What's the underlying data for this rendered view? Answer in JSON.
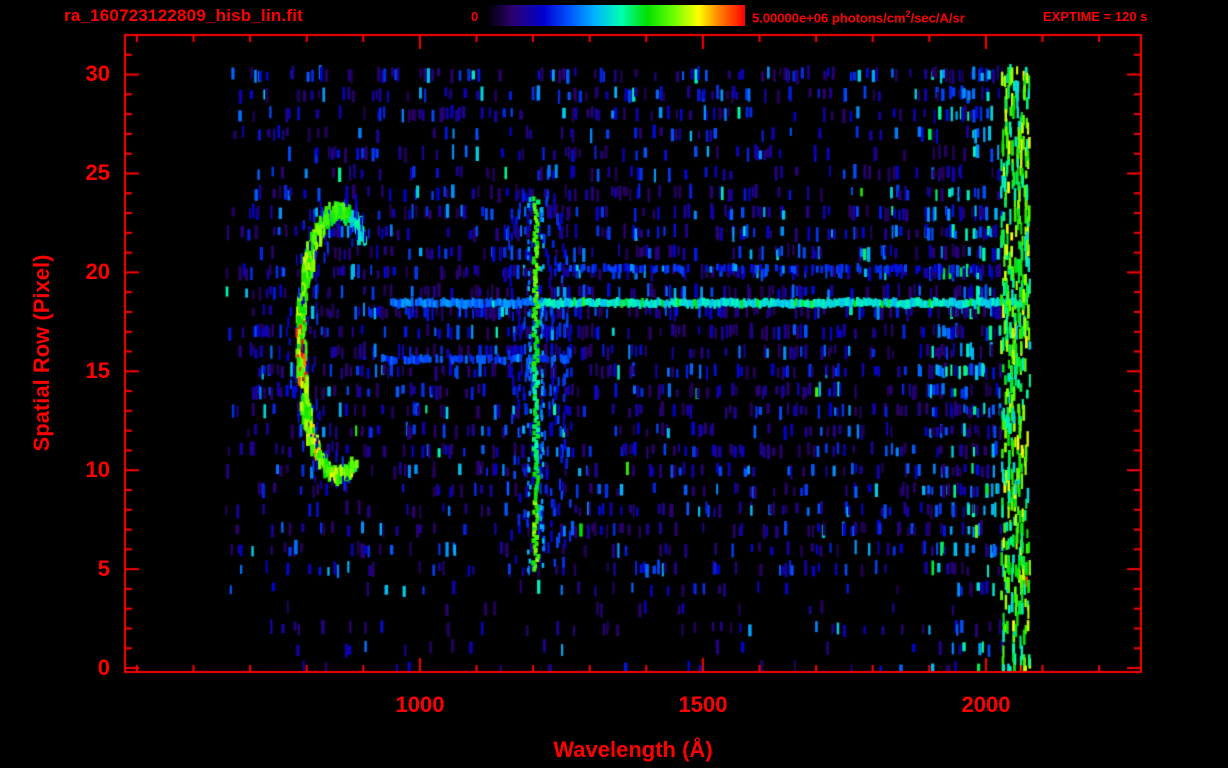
{
  "header": {
    "filename": "ra_160723122809_hisb_lin.fit",
    "exptime": "EXPTIME = 120 s",
    "colorbar": {
      "min_label": "0",
      "max_label_prefix": "5.00000e+06 photons/cm",
      "max_label_sup": "2",
      "max_label_suffix": "/sec/A/sr"
    }
  },
  "axes": {
    "x": {
      "label": "Wavelength (Å)",
      "tick_labels": [
        "1000",
        "1500",
        "2000"
      ]
    },
    "y": {
      "label": "Spatial Row (Pixel)",
      "tick_labels": [
        "0",
        "5",
        "10",
        "15",
        "20",
        "25",
        "30"
      ]
    }
  },
  "chart_data": {
    "type": "heatmap",
    "title": "ra_160723122809_hisb_lin.fit",
    "xlabel": "Wavelength (Å)",
    "ylabel": "Spatial Row (Pixel)",
    "xlim": [
      479,
      2274
    ],
    "ylim": [
      -0.2,
      32
    ],
    "x_major_ticks": [
      1000,
      1500,
      2000
    ],
    "x_minor_step": 100,
    "y_major_ticks": [
      0,
      5,
      10,
      15,
      20,
      25,
      30
    ],
    "y_minor_step": 1,
    "colorbar": {
      "min": 0,
      "max": 5000000,
      "units": "photons/cm2/sec/A/sr"
    },
    "exptime_s": 120,
    "data_extent": {
      "wavelength_A": [
        660,
        2075
      ],
      "spatial_rows": [
        0,
        30.4
      ]
    },
    "axis_color": "#ff0000",
    "background": "#000000",
    "seed": 1337,
    "colormap_stops": [
      [
        0.0,
        "#000000"
      ],
      [
        0.1,
        "#2c0070"
      ],
      [
        0.22,
        "#0000d0"
      ],
      [
        0.32,
        "#0055ff"
      ],
      [
        0.42,
        "#00b4ff"
      ],
      [
        0.52,
        "#00ffb0"
      ],
      [
        0.62,
        "#00e000"
      ],
      [
        0.72,
        "#66ff00"
      ],
      [
        0.82,
        "#ffff00"
      ],
      [
        0.9,
        "#ff8000"
      ],
      [
        1.0,
        "#ff0000"
      ]
    ],
    "features": [
      {
        "type": "noise_rows",
        "x_range": [
          660,
          2030
        ],
        "left_fade_below": 700,
        "right_enhanced_range": [
          1900,
          2030
        ],
        "row_densities": [
          0.05,
          0.06,
          0.09,
          0.06,
          0.09,
          0.16,
          0.18,
          0.2,
          0.22,
          0.2,
          0.26,
          0.26,
          0.28,
          0.3,
          0.32,
          0.34,
          0.32,
          0.34,
          0.4,
          0.36,
          0.38,
          0.3,
          0.28,
          0.3,
          0.22,
          0.18,
          0.2,
          0.16,
          0.26,
          0.28,
          0.3
        ]
      },
      {
        "type": "vertical_haze",
        "wavelength_range": [
          1160,
          1265
        ],
        "row_range": [
          5,
          24
        ],
        "density": 0.22,
        "value": 0.24
      },
      {
        "type": "horizontal_streak",
        "row": 18.45,
        "wavelength_range": [
          950,
          1205
        ],
        "value": 0.36,
        "thickness_rows": 0.33,
        "density": 0.9
      },
      {
        "type": "horizontal_streak",
        "row": 18.45,
        "wavelength_range": [
          1205,
          2068
        ],
        "value": 0.47,
        "thickness_rows": 0.33,
        "density": 1
      },
      {
        "type": "horizontal_streak",
        "row": 15.6,
        "wavelength_range": [
          930,
          1265
        ],
        "value": 0.3,
        "thickness_rows": 0.3,
        "density": 0.7
      },
      {
        "type": "horizontal_streak",
        "row": 20.2,
        "wavelength_range": [
          1230,
          1990
        ],
        "value": 0.26,
        "thickness_rows": 0.3,
        "density": 0.45
      },
      {
        "type": "edge_band",
        "wavelength_range": [
          2030,
          2076
        ],
        "row_range": [
          0,
          30.4
        ],
        "value_range": [
          0.45,
          0.82
        ],
        "density": 0.85
      },
      {
        "type": "ring_arc",
        "center_wavelength": 858,
        "center_row": 16.4,
        "radius_wavelength": 68,
        "radius_rows": 6.7,
        "angle_start_deg": 52,
        "angle_end_deg": 292,
        "red_spot_angle_deg": [
          170,
          200
        ]
      },
      {
        "type": "emission_line",
        "wavelength": 1205,
        "row_range": [
          5,
          23.8
        ],
        "value": 0.6
      }
    ]
  }
}
